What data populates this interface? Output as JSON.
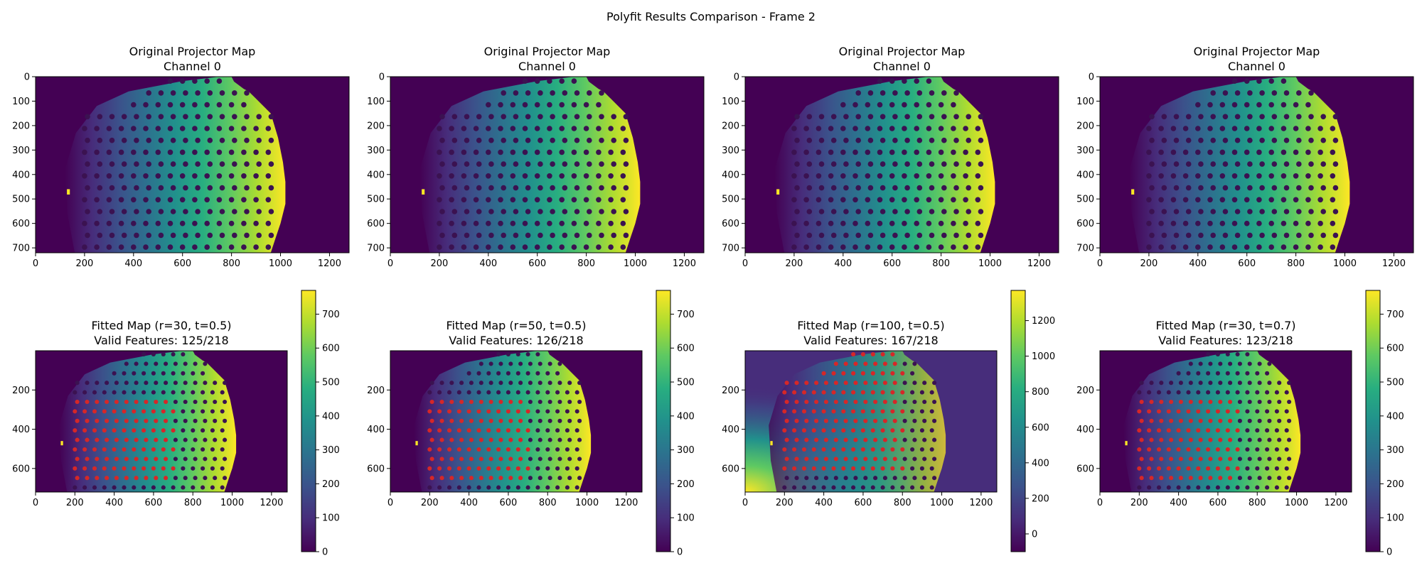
{
  "suptitle": "Polyfit Results Comparison - Frame 2",
  "colors": {
    "background": "#440154",
    "dot": "#3b1251",
    "feature_marker": "#d62728"
  },
  "chart_data": [
    {
      "type": "heatmap",
      "title": "Original Projector Map\nChannel 0",
      "colormap": "viridis",
      "image_width": 1280,
      "image_height": 720,
      "xlim": [
        0,
        1280
      ],
      "ylim": [
        720,
        0
      ],
      "xticks": [
        0,
        200,
        400,
        600,
        800,
        1000,
        1200
      ],
      "yticks": [
        0,
        100,
        200,
        300,
        400,
        500,
        600,
        700
      ],
      "value_range": [
        0,
        770
      ]
    },
    {
      "type": "heatmap",
      "title": "Original Projector Map\nChannel 0",
      "colormap": "viridis",
      "image_width": 1280,
      "image_height": 720,
      "xlim": [
        0,
        1280
      ],
      "ylim": [
        720,
        0
      ],
      "xticks": [
        0,
        200,
        400,
        600,
        800,
        1000,
        1200
      ],
      "yticks": [
        0,
        100,
        200,
        300,
        400,
        500,
        600,
        700
      ],
      "value_range": [
        0,
        770
      ]
    },
    {
      "type": "heatmap",
      "title": "Original Projector Map\nChannel 0",
      "colormap": "viridis",
      "image_width": 1280,
      "image_height": 720,
      "xlim": [
        0,
        1280
      ],
      "ylim": [
        720,
        0
      ],
      "xticks": [
        0,
        200,
        400,
        600,
        800,
        1000,
        1200
      ],
      "yticks": [
        0,
        100,
        200,
        300,
        400,
        500,
        600,
        700
      ],
      "value_range": [
        0,
        770
      ]
    },
    {
      "type": "heatmap",
      "title": "Original Projector Map\nChannel 0",
      "colormap": "viridis",
      "image_width": 1280,
      "image_height": 720,
      "xlim": [
        0,
        1280
      ],
      "ylim": [
        720,
        0
      ],
      "xticks": [
        0,
        200,
        400,
        600,
        800,
        1000,
        1200
      ],
      "yticks": [
        0,
        100,
        200,
        300,
        400,
        500,
        600,
        700
      ],
      "value_range": [
        0,
        770
      ]
    },
    {
      "type": "heatmap",
      "title": "Fitted Map (r=30, t=0.5)\nValid Features: 125/218",
      "colormap": "viridis",
      "image_width": 1280,
      "image_height": 720,
      "xlim": [
        0,
        1280
      ],
      "ylim": [
        720,
        0
      ],
      "xticks": [
        0,
        200,
        400,
        600,
        800,
        1000,
        1200
      ],
      "yticks": [
        200,
        400,
        600
      ],
      "value_range": [
        0,
        770
      ],
      "colorbar": {
        "min": 0,
        "max": 770,
        "ticks": [
          0,
          100,
          200,
          300,
          400,
          500,
          600,
          700
        ]
      },
      "valid_features": 125,
      "total_features": 218,
      "feature_region": {
        "cols": [
          150,
          700
        ],
        "rows": [
          230,
          680
        ]
      }
    },
    {
      "type": "heatmap",
      "title": "Fitted Map (r=50, t=0.5)\nValid Features: 126/218",
      "colormap": "viridis",
      "image_width": 1280,
      "image_height": 720,
      "xlim": [
        0,
        1280
      ],
      "ylim": [
        720,
        0
      ],
      "xticks": [
        0,
        200,
        400,
        600,
        800,
        1000,
        1200
      ],
      "yticks": [
        200,
        400,
        600
      ],
      "value_range": [
        0,
        770
      ],
      "colorbar": {
        "min": 0,
        "max": 770,
        "ticks": [
          0,
          100,
          200,
          300,
          400,
          500,
          600,
          700
        ]
      },
      "valid_features": 126,
      "total_features": 218,
      "feature_region": {
        "cols": [
          150,
          700
        ],
        "rows": [
          230,
          680
        ]
      }
    },
    {
      "type": "heatmap",
      "title": "Fitted Map (r=100, t=0.5)\nValid Features: 167/218",
      "colormap": "viridis",
      "image_width": 1280,
      "image_height": 720,
      "xlim": [
        0,
        1280
      ],
      "ylim": [
        720,
        0
      ],
      "xticks": [
        0,
        200,
        400,
        600,
        800,
        1000,
        1200
      ],
      "yticks": [
        200,
        400,
        600
      ],
      "value_range": [
        -100,
        1370
      ],
      "colorbar": {
        "min": -100,
        "max": 1370,
        "ticks": [
          0,
          200,
          400,
          600,
          800,
          1000,
          1200
        ]
      },
      "valid_features": 167,
      "total_features": 218,
      "feature_region": {
        "cols": [
          150,
          800
        ],
        "rows": [
          0,
          620
        ]
      }
    },
    {
      "type": "heatmap",
      "title": "Fitted Map (r=30, t=0.7)\nValid Features: 123/218",
      "colormap": "viridis",
      "image_width": 1280,
      "image_height": 720,
      "xlim": [
        0,
        1280
      ],
      "ylim": [
        720,
        0
      ],
      "xticks": [
        0,
        200,
        400,
        600,
        800,
        1000,
        1200
      ],
      "yticks": [
        200,
        400,
        600
      ],
      "value_range": [
        0,
        770
      ],
      "colorbar": {
        "min": 0,
        "max": 770,
        "ticks": [
          0,
          100,
          200,
          300,
          400,
          500,
          600,
          700
        ]
      },
      "valid_features": 123,
      "total_features": 218,
      "feature_region": {
        "cols": [
          150,
          700
        ],
        "rows": [
          230,
          680
        ]
      }
    }
  ]
}
